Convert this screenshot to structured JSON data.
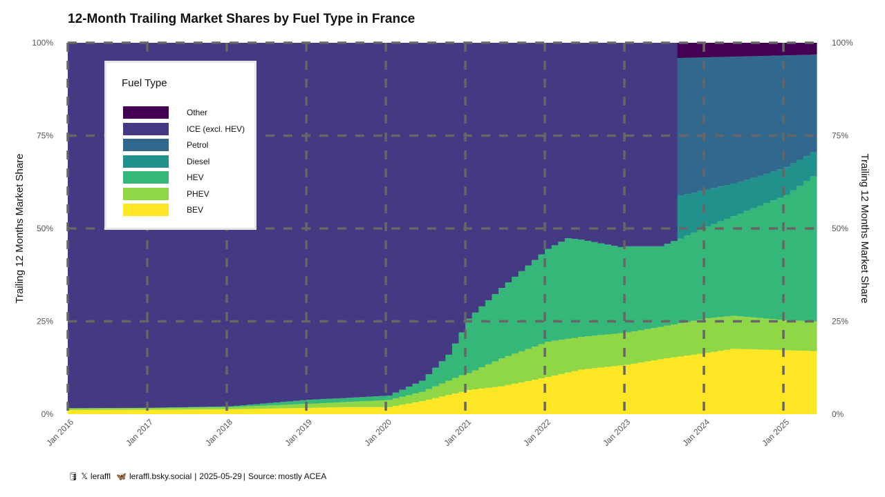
{
  "chart_data": {
    "type": "area",
    "title": "12-Month Trailing Market Shares by Fuel Type in France",
    "ylabel": "Trailing 12 Months Market Share",
    "ylabel_right": "Trailing 12 Months Market Share",
    "ylim": [
      0,
      100
    ],
    "y_ticks": [
      "0%",
      "25%",
      "50%",
      "75%",
      "100%"
    ],
    "x_ticks": [
      "Jan 2016",
      "Jan 2017",
      "Jan 2018",
      "Jan 2019",
      "Jan 2020",
      "Jan 2021",
      "Jan 2022",
      "Jan 2023",
      "Jan 2024",
      "Jan 2025"
    ],
    "x_start": "2016-01",
    "x_end": "2025-05",
    "legend_title": "Fuel Type",
    "legend_position": "top-left",
    "grid": "dashed major gridlines",
    "split_date": "2023-09",
    "series": [
      {
        "name": "BEV",
        "color": "#fde725",
        "anchors": [
          [
            "2016-01",
            1.1
          ],
          [
            "2017-01",
            1.2
          ],
          [
            "2018-01",
            1.3
          ],
          [
            "2019-01",
            1.7
          ],
          [
            "2019-06",
            1.9
          ],
          [
            "2020-01",
            1.9
          ],
          [
            "2020-06",
            3.5
          ],
          [
            "2020-12",
            6.0
          ],
          [
            "2021-01",
            6.5
          ],
          [
            "2021-06",
            7.5
          ],
          [
            "2022-01",
            10.0
          ],
          [
            "2022-06",
            12.0
          ],
          [
            "2023-01",
            13.3
          ],
          [
            "2023-06",
            14.8
          ],
          [
            "2024-01",
            16.5
          ],
          [
            "2024-05",
            17.6
          ],
          [
            "2025-01",
            17.2
          ],
          [
            "2025-05",
            17.0
          ]
        ]
      },
      {
        "name": "PHEV",
        "color": "#8fd744",
        "anchors": [
          [
            "2016-01",
            1.6
          ],
          [
            "2017-01",
            1.7
          ],
          [
            "2018-01",
            1.9
          ],
          [
            "2019-01",
            2.8
          ],
          [
            "2020-01",
            3.8
          ],
          [
            "2020-06",
            6.0
          ],
          [
            "2020-12",
            10.5
          ],
          [
            "2021-01",
            11.0
          ],
          [
            "2021-06",
            15.0
          ],
          [
            "2022-01",
            19.5
          ],
          [
            "2022-06",
            20.8
          ],
          [
            "2023-01",
            22.0
          ],
          [
            "2023-06",
            23.5
          ],
          [
            "2024-01",
            25.8
          ],
          [
            "2024-05",
            26.5
          ],
          [
            "2025-01",
            25.3
          ],
          [
            "2025-05",
            25.0
          ]
        ]
      },
      {
        "name": "HEV",
        "color": "#35b779",
        "anchors": [
          [
            "2016-01",
            1.6
          ],
          [
            "2017-01",
            1.7
          ],
          [
            "2018-01",
            2.1
          ],
          [
            "2019-01",
            3.9
          ],
          [
            "2019-06",
            4.3
          ],
          [
            "2020-01",
            5.0
          ],
          [
            "2020-06",
            9.0
          ],
          [
            "2020-10",
            16.0
          ],
          [
            "2020-12",
            22.0
          ],
          [
            "2021-01",
            25.7
          ],
          [
            "2021-06",
            34.0
          ],
          [
            "2021-10",
            40.0
          ],
          [
            "2022-01",
            44.5
          ],
          [
            "2022-04",
            47.4
          ],
          [
            "2022-06",
            47.0
          ],
          [
            "2022-12",
            45.0
          ],
          [
            "2023-01",
            45.2
          ],
          [
            "2023-06",
            45.2
          ],
          [
            "2023-09",
            47.3
          ],
          [
            "2024-01",
            50.5
          ],
          [
            "2024-06",
            54.0
          ],
          [
            "2025-01",
            59.0
          ],
          [
            "2025-05",
            64.0
          ]
        ]
      },
      {
        "name": "Diesel",
        "color": "#21918c",
        "anchors": [
          [
            "2023-09",
            58.8
          ],
          [
            "2024-01",
            60.5
          ],
          [
            "2024-06",
            62.5
          ],
          [
            "2025-01",
            66.5
          ],
          [
            "2025-05",
            70.5
          ]
        ]
      },
      {
        "name": "Petrol",
        "color": "#31688e",
        "anchors": [
          [
            "2023-09",
            95.9
          ],
          [
            "2024-06",
            96.3
          ],
          [
            "2025-05",
            96.8
          ]
        ]
      },
      {
        "name": "ICE (excl. HEV)",
        "color": "#443983",
        "anchors": [
          [
            "2016-01",
            100
          ],
          [
            "2023-08",
            100
          ]
        ]
      },
      {
        "name": "Other",
        "color": "#440154",
        "anchors": [
          [
            "2023-09",
            100
          ],
          [
            "2025-05",
            100
          ]
        ]
      }
    ]
  },
  "legend": {
    "title": "Fuel Type",
    "items": [
      {
        "label": "Other",
        "color": "#440154"
      },
      {
        "label": "ICE (excl. HEV)",
        "color": "#443983"
      },
      {
        "label": "Petrol",
        "color": "#31688e"
      },
      {
        "label": "Diesel",
        "color": "#21918c"
      },
      {
        "label": "HEV",
        "color": "#35b779"
      },
      {
        "label": "PHEV",
        "color": "#8fd744"
      },
      {
        "label": "BEV",
        "color": "#fde725"
      }
    ]
  },
  "footer": {
    "x_handle": "leraffl",
    "bsky_handle": "leraffl.bsky.social",
    "date": "2025-05-29",
    "source_label": "Source:",
    "source_value": "mostly ACEA",
    "icons": [
      "mug-icon",
      "x-logo-icon",
      "butterfly-icon"
    ]
  }
}
